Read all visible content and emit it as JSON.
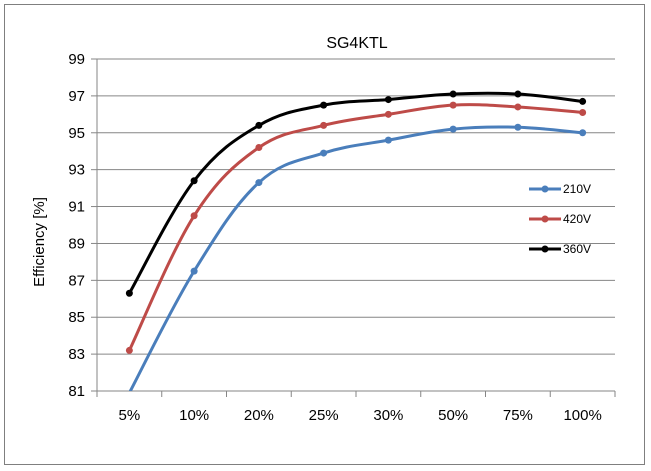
{
  "chart_data": {
    "type": "line",
    "title": "SG4KTL",
    "xlabel": "",
    "ylabel": "Efficiency [%]",
    "categories": [
      "5%",
      "10%",
      "20%",
      "25%",
      "30%",
      "50%",
      "75%",
      "100%"
    ],
    "ylim": [
      81,
      99
    ],
    "yticks": [
      81,
      83,
      85,
      87,
      89,
      91,
      93,
      95,
      97,
      99
    ],
    "grid": true,
    "legend_position": "right",
    "series": [
      {
        "name": "210V",
        "color": "#4a7ebb",
        "values": [
          80.9,
          87.5,
          92.3,
          93.9,
          94.6,
          95.2,
          95.3,
          95.0
        ]
      },
      {
        "name": "420V",
        "color": "#be4b48",
        "values": [
          83.2,
          90.5,
          94.2,
          95.4,
          96.0,
          96.5,
          96.4,
          96.1
        ]
      },
      {
        "name": "360V",
        "color": "#000000",
        "values": [
          86.3,
          92.4,
          95.4,
          96.5,
          96.8,
          97.1,
          97.1,
          96.7
        ]
      }
    ]
  }
}
